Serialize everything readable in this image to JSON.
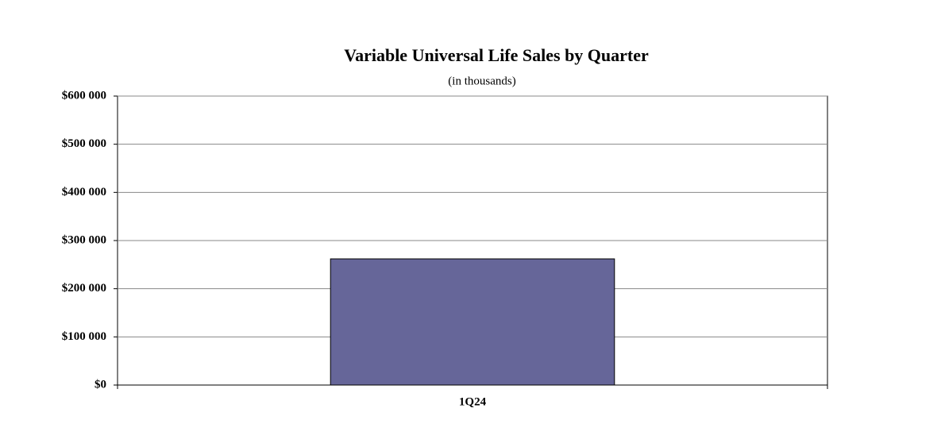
{
  "chart_data": {
    "type": "bar",
    "title": "Variable Universal Life Sales by Quarter",
    "subtitle": "(in thousands)",
    "categories": [
      "1Q24"
    ],
    "values": [
      262000
    ],
    "color": "#666699",
    "ylim": [
      0,
      600000
    ],
    "yticks": [
      {
        "value": 0,
        "label": "$0"
      },
      {
        "value": 100000,
        "label": "$100 000"
      },
      {
        "value": 200000,
        "label": "$200 000"
      },
      {
        "value": 300000,
        "label": "$300 000"
      },
      {
        "value": 400000,
        "label": "$400 000"
      },
      {
        "value": 500000,
        "label": "$500 000"
      },
      {
        "value": 600000,
        "label": "$600 000"
      }
    ],
    "grid": true
  }
}
